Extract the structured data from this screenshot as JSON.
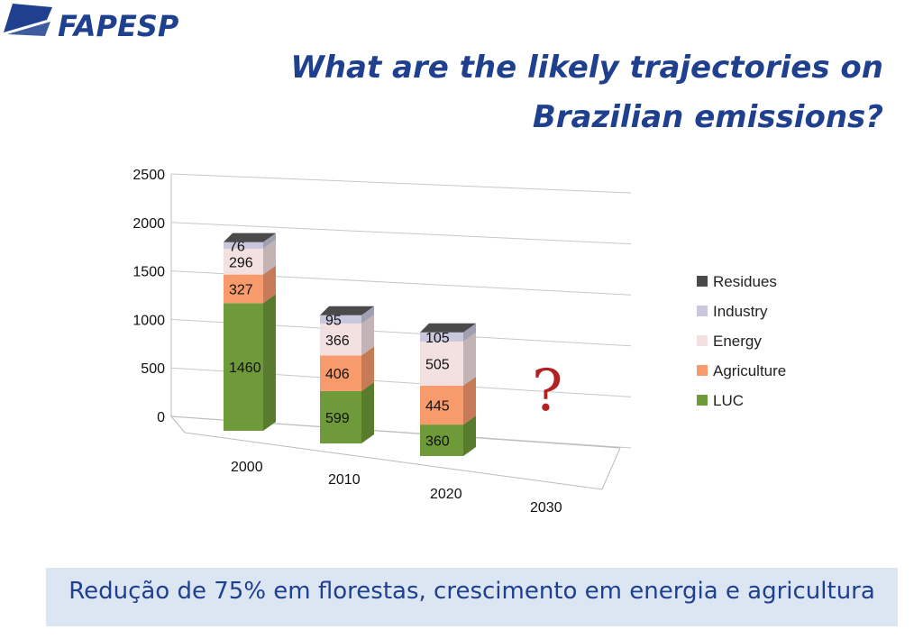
{
  "logo": {
    "text": "FAPESP"
  },
  "title": "What are the likely trajectories on Brazilian emissions?",
  "chart_data": {
    "type": "bar",
    "stacked": true,
    "categories": [
      "2000",
      "2010",
      "2020",
      "2030"
    ],
    "yticks": [
      0,
      500,
      1000,
      1500,
      2000,
      2500
    ],
    "ylim": [
      0,
      2500
    ],
    "series": [
      {
        "name": "LUC",
        "values": [
          1460,
          599,
          360,
          null
        ]
      },
      {
        "name": "Agriculture",
        "values": [
          327,
          406,
          445,
          null
        ]
      },
      {
        "name": "Energy",
        "values": [
          296,
          366,
          505,
          null
        ]
      },
      {
        "name": "Industry",
        "values": [
          76,
          95,
          105,
          null
        ]
      },
      {
        "name": "Residues",
        "values": [
          null,
          null,
          null,
          null
        ]
      }
    ],
    "colors": {
      "LUC": "#6f9a3a",
      "Agriculture": "#f79a6c",
      "Energy": "#f3e1e1",
      "Industry": "#c9c7de",
      "Residues": "#4a4a4a"
    },
    "annotation": "?",
    "legend_position": "right"
  },
  "caption": "Redução de 75% em florestas, crescimento em energia e agricultura"
}
